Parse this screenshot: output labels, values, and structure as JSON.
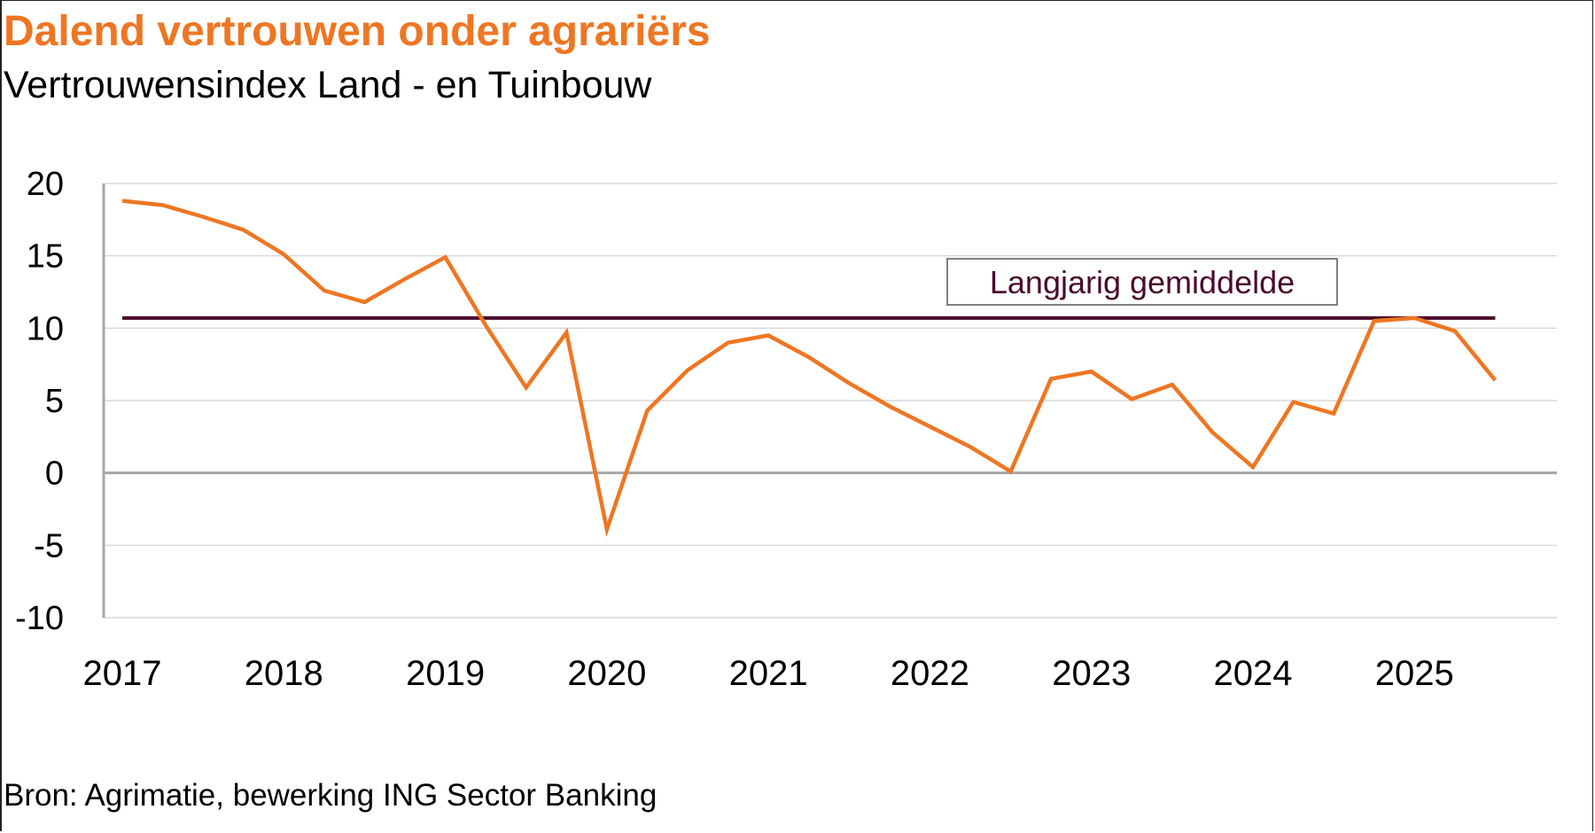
{
  "header": {
    "title": "Dalend vertrouwen onder agrariërs",
    "subtitle": "Vertrouwensindex Land - en Tuinbouw"
  },
  "footer": {
    "source": "Bron: Agrimatie, bewerking ING Sector Banking"
  },
  "colors": {
    "title": "#EE7623",
    "series": "#EE7623",
    "average": "#4A0A2C",
    "gridline": "#D9D9D9",
    "zeroline": "#A6A6A6"
  },
  "chart_data": {
    "type": "line",
    "title": "Dalend vertrouwen onder agrariërs",
    "subtitle": "Vertrouwensindex Land - en Tuinbouw",
    "xlabel": "",
    "ylabel": "",
    "xlim": [
      2017,
      2025.75
    ],
    "ylim": [
      -10,
      20
    ],
    "yticks": [
      20,
      15,
      10,
      5,
      0,
      -5,
      -10
    ],
    "xticks": [
      2017,
      2018,
      2019,
      2020,
      2021,
      2022,
      2023,
      2024,
      2025
    ],
    "grid": true,
    "series": [
      {
        "name": "Vertrouwensindex Land- en Tuinbouw",
        "x": [
          2017.0,
          2017.25,
          2017.5,
          2017.75,
          2018.0,
          2018.25,
          2018.5,
          2018.75,
          2019.0,
          2019.25,
          2019.5,
          2019.75,
          2020.0,
          2020.25,
          2020.5,
          2020.75,
          2021.0,
          2021.25,
          2021.5,
          2021.75,
          2022.0,
          2022.25,
          2022.5,
          2022.75,
          2023.0,
          2023.25,
          2023.5,
          2023.75,
          2024.0,
          2024.25,
          2024.5,
          2024.75,
          2025.0,
          2025.25,
          2025.5
        ],
        "values": [
          18.8,
          18.5,
          17.7,
          16.8,
          15.1,
          12.6,
          11.8,
          13.4,
          14.9,
          10.2,
          5.9,
          9.7,
          -3.9,
          4.3,
          7.1,
          9.0,
          9.5,
          8.0,
          6.2,
          4.6,
          3.2,
          1.8,
          0.1,
          6.5,
          7.0,
          5.1,
          6.1,
          2.8,
          0.4,
          4.9,
          4.1,
          10.5,
          10.7,
          9.8,
          6.4
        ]
      }
    ],
    "reference_line": {
      "label": "Langjarig gemiddelde",
      "value": 10.7,
      "x_start": 2017.0,
      "x_end": 2025.5
    }
  }
}
